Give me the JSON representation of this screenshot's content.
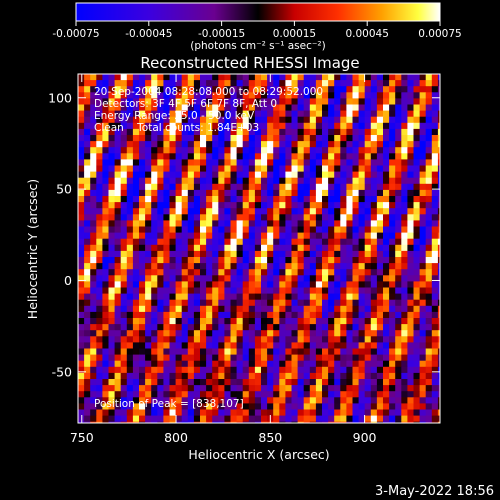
{
  "colorbar": {
    "ticks": [
      "-0.00075",
      "-0.00045",
      "-0.00015",
      "0.00015",
      "0.00045",
      "0.00075"
    ],
    "tick_values": [
      -0.00075,
      -0.00045,
      -0.00015,
      0.00015,
      0.00045,
      0.00075
    ],
    "range": [
      -0.00075,
      0.00075
    ],
    "unit_label": "(photons cm⁻² s⁻¹ asec⁻²)"
  },
  "chart_data": {
    "type": "heatmap",
    "title": "Reconstructed RHESSI Image",
    "xlabel": "Heliocentric X (arcsec)",
    "ylabel": "Heliocentric Y (arcsec)",
    "xlim": [
      748,
      940
    ],
    "ylim": [
      -78,
      113
    ],
    "xticks": [
      750,
      800,
      850,
      900
    ],
    "yticks": [
      -50,
      0,
      50,
      100
    ],
    "colormap": "blue-purple-red-orange-yellow-white",
    "pattern": "diagonal striped modulation fringes",
    "annotations": [
      "20-Sep-2004 08:28:08.000 to 08:29:52.000",
      "Detectors: 3F 4F 5F 6F 7F 8F, Att 0",
      "Energy Range: 25.0 - 50.0 keV",
      "Clean    Total counts: 1.84E+03"
    ],
    "peak_label": "Position of Peak = [838,107]",
    "peak": [
      838,
      107
    ]
  },
  "footer": {
    "timestamp": "3-May-2022 18:56"
  }
}
